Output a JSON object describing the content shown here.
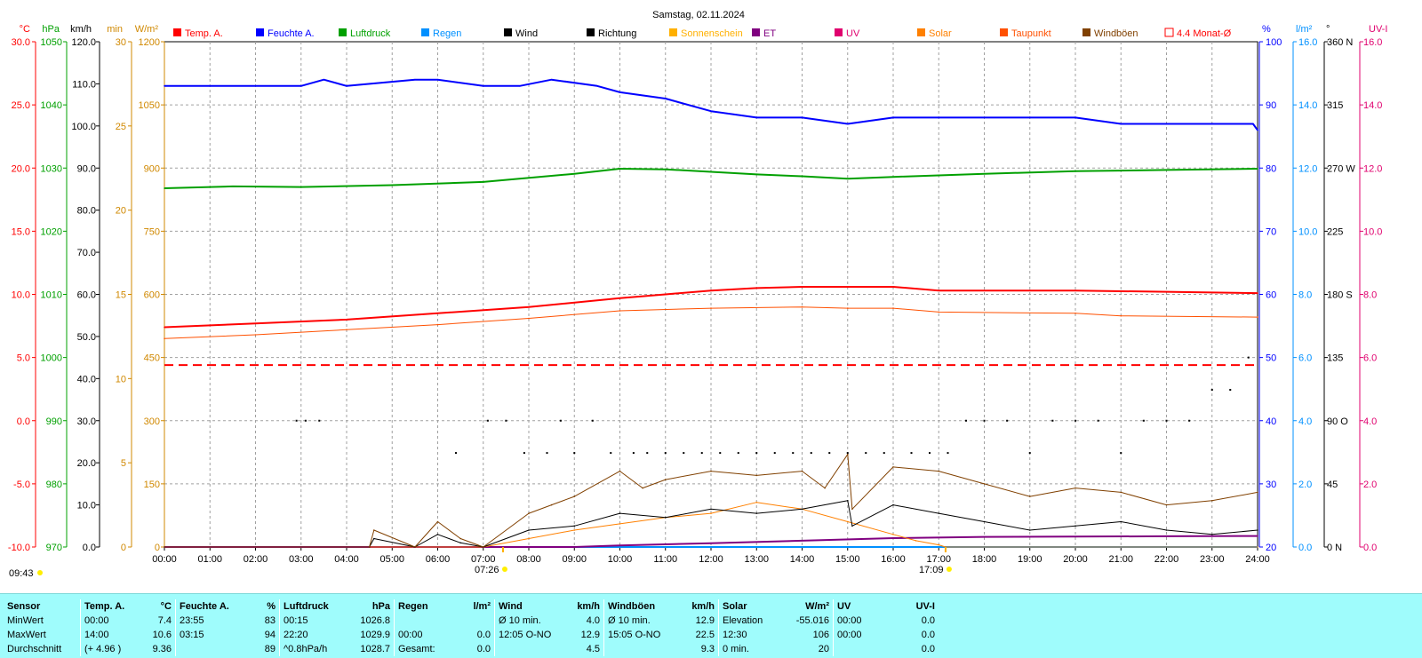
{
  "title": "Samstag, 02.11.2024",
  "colors": {
    "temp": "#ff0000",
    "humidity": "#0000ff",
    "pressure": "#00a000",
    "rain": "#0090ff",
    "wind": "#000000",
    "direction": "#000000",
    "sunshine": "#ffb000",
    "et": "#800080",
    "uv": "#e0006e",
    "solar": "#ff8000",
    "dewpoint": "#ff5000",
    "gusts": "#804000",
    "monthly": "#ff0000"
  },
  "legend": [
    {
      "label": "Temp. A.",
      "color": "#ff0000",
      "style": "box"
    },
    {
      "label": "Feuchte A.",
      "color": "#0000ff",
      "style": "box"
    },
    {
      "label": "Luftdruck",
      "color": "#00a000",
      "style": "box"
    },
    {
      "label": "Regen",
      "color": "#0090ff",
      "style": "box"
    },
    {
      "label": "Wind",
      "color": "#000000",
      "style": "box"
    },
    {
      "label": "Richtung",
      "color": "#000000",
      "style": "box"
    },
    {
      "label": "Sonnenschein",
      "color": "#ffb000",
      "style": "box"
    },
    {
      "label": "ET",
      "color": "#800080",
      "style": "box"
    },
    {
      "label": "UV",
      "color": "#e0006e",
      "style": "box"
    },
    {
      "label": "Solar",
      "color": "#ff8000",
      "style": "box"
    },
    {
      "label": "Taupunkt",
      "color": "#ff5000",
      "style": "box"
    },
    {
      "label": "Windböen",
      "color": "#804000",
      "style": "box"
    },
    {
      "label": "4.4 Monat-Ø",
      "color": "#ff0000",
      "style": "open"
    }
  ],
  "axes": {
    "temp": {
      "unit": "°C",
      "ticks": [
        "30.0",
        "25.0",
        "20.0",
        "15.0",
        "10.0",
        "5.0",
        "0.0",
        "-5.0",
        "-10.0"
      ]
    },
    "pressure": {
      "unit": "hPa",
      "ticks": [
        "1050",
        "1040",
        "1030",
        "1020",
        "1010",
        "1000",
        "990",
        "980",
        "970"
      ]
    },
    "wind": {
      "unit": "km/h",
      "ticks": [
        "120.0",
        "110.0",
        "100.0",
        "90.0",
        "80.0",
        "70.0",
        "60.0",
        "50.0",
        "40.0",
        "30.0",
        "20.0",
        "10.0",
        "0.0"
      ]
    },
    "sunshine": {
      "unit": "min",
      "ticks": [
        "30",
        "25",
        "20",
        "15",
        "10",
        "5",
        "0"
      ]
    },
    "solar": {
      "unit": "W/m²",
      "ticks": [
        "1200",
        "1050",
        "900",
        "750",
        "600",
        "450",
        "300",
        "150",
        "0"
      ]
    },
    "humidity": {
      "unit": "%",
      "ticks": [
        "100",
        "90",
        "80",
        "70",
        "60",
        "50",
        "40",
        "30",
        "20"
      ]
    },
    "rain": {
      "unit": "l/m²",
      "ticks": [
        "16.0",
        "14.0",
        "12.0",
        "10.0",
        "8.0",
        "6.0",
        "4.0",
        "2.0",
        "0.0"
      ]
    },
    "direction": {
      "unit": "°",
      "ticks": [
        "360 N",
        "315",
        "270 W",
        "225",
        "180 S",
        "135",
        "90 O",
        "45",
        "0 N"
      ]
    },
    "uv": {
      "unit": "UV-I",
      "ticks": [
        "16.0",
        "14.0",
        "12.0",
        "10.0",
        "8.0",
        "6.0",
        "4.0",
        "2.0",
        "0.0"
      ]
    },
    "time": {
      "ticks": [
        "00:00",
        "01:00",
        "02:00",
        "03:00",
        "04:00",
        "05:00",
        "06:00",
        "07:00",
        "08:00",
        "09:00",
        "10:00",
        "11:00",
        "12:00",
        "13:00",
        "14:00",
        "15:00",
        "16:00",
        "17:00",
        "18:00",
        "19:00",
        "20:00",
        "21:00",
        "22:00",
        "23:00",
        "24:00"
      ]
    }
  },
  "markers": {
    "now": "09:43",
    "sunrise": "07:26",
    "sunset": "17:09"
  },
  "chart_data": {
    "type": "line",
    "x_unit": "hour",
    "grid": true,
    "reference_line": {
      "name": "4.4 Monat-Ø",
      "axis": "temp",
      "value": 4.4
    },
    "series": [
      {
        "name": "Temp. A.",
        "axis": "temp",
        "x": [
          0,
          2,
          4,
          6,
          8,
          10,
          11,
          12,
          13,
          14,
          15,
          16,
          17,
          20,
          24
        ],
        "y": [
          7.4,
          7.7,
          8.0,
          8.5,
          9.0,
          9.7,
          10.0,
          10.3,
          10.5,
          10.6,
          10.6,
          10.6,
          10.3,
          10.3,
          10.1
        ]
      },
      {
        "name": "Taupunkt",
        "axis": "temp",
        "x": [
          0,
          2,
          4,
          6,
          8,
          10,
          12,
          14,
          15,
          16,
          17,
          20,
          21,
          24
        ],
        "y": [
          6.5,
          6.8,
          7.2,
          7.6,
          8.1,
          8.7,
          8.9,
          9.0,
          8.9,
          8.9,
          8.6,
          8.5,
          8.3,
          8.2
        ]
      },
      {
        "name": "Feuchte A.",
        "axis": "humidity",
        "x": [
          0,
          3,
          3.5,
          4,
          5.5,
          6,
          7,
          7.8,
          8.5,
          9.5,
          10,
          11,
          12,
          13,
          14,
          15,
          16,
          17,
          20,
          21,
          23.9,
          24
        ],
        "y": [
          93,
          93,
          94,
          93,
          94,
          94,
          93,
          93,
          94,
          93,
          92,
          91,
          89,
          88,
          88,
          87,
          88,
          88,
          88,
          87,
          87,
          86
        ]
      },
      {
        "name": "Luftdruck",
        "axis": "pressure",
        "x": [
          0,
          1.5,
          3,
          5,
          7,
          9,
          10,
          11,
          12,
          13,
          14,
          15,
          16,
          18,
          20,
          22,
          24
        ],
        "y": [
          1026.8,
          1027.1,
          1027.0,
          1027.3,
          1027.8,
          1029.1,
          1029.9,
          1029.8,
          1029.4,
          1029.0,
          1028.7,
          1028.3,
          1028.6,
          1029.1,
          1029.5,
          1029.7,
          1029.9
        ]
      },
      {
        "name": "Regen",
        "axis": "rain",
        "x": [
          0,
          24
        ],
        "y": [
          0.0,
          0.0
        ]
      },
      {
        "name": "ET",
        "axis": "rain",
        "x": [
          0,
          9,
          10,
          12,
          14,
          16,
          18,
          20,
          22,
          24
        ],
        "y": [
          0.0,
          0.0,
          0.05,
          0.12,
          0.2,
          0.28,
          0.32,
          0.33,
          0.34,
          0.35
        ]
      },
      {
        "name": "Solar",
        "axis": "solar",
        "x": [
          0,
          7,
          8,
          9,
          10,
          11,
          12,
          13,
          14,
          15,
          16,
          16.5,
          17,
          17.15,
          24
        ],
        "y": [
          0,
          0,
          20,
          40,
          55,
          70,
          80,
          106,
          90,
          60,
          30,
          15,
          5,
          0,
          0
        ]
      },
      {
        "name": "Wind",
        "axis": "wind",
        "x": [
          0,
          4.5,
          4.6,
          5.5,
          6,
          6.5,
          7,
          8,
          9,
          10,
          11,
          12,
          13,
          14,
          15,
          15.1,
          16,
          17,
          18,
          19,
          20,
          21,
          22,
          23,
          24
        ],
        "y": [
          0,
          0,
          2,
          0,
          3,
          1,
          0,
          4,
          5,
          8,
          7,
          9,
          8,
          9,
          11,
          5,
          10,
          8,
          6,
          4,
          5,
          6,
          4,
          3,
          4
        ]
      },
      {
        "name": "Windböen",
        "axis": "wind",
        "x": [
          0,
          4.5,
          4.6,
          5.5,
          6,
          6.5,
          7,
          8,
          8.5,
          9,
          10,
          10.5,
          11,
          12,
          13,
          14,
          14.5,
          15,
          15.1,
          16,
          17,
          18,
          19,
          20,
          21,
          22,
          23,
          24
        ],
        "y": [
          0,
          0,
          4,
          0,
          6,
          2,
          0,
          8,
          10,
          12,
          18,
          14,
          16,
          18,
          17,
          18,
          14,
          22,
          9,
          19,
          18,
          15,
          12,
          14,
          13,
          10,
          11,
          13
        ]
      }
    ],
    "direction_points": {
      "axis": "direction",
      "x": [
        2.9,
        3.1,
        3.4,
        6.4,
        7.1,
        7.5,
        7.9,
        8.4,
        8.7,
        9.0,
        9.4,
        9.8,
        10.3,
        10.6,
        11.0,
        11.4,
        11.8,
        12.2,
        12.6,
        13.0,
        13.4,
        13.8,
        14.2,
        14.6,
        15.0,
        15.4,
        15.8,
        16.4,
        16.8,
        17.2,
        17.6,
        18.0,
        18.5,
        19.0,
        19.5,
        20.0,
        20.5,
        21.0,
        21.5,
        22.0,
        22.5,
        23.0,
        23.4,
        23.8
      ],
      "y": [
        90,
        90,
        90,
        67,
        90,
        90,
        67,
        67,
        90,
        67,
        90,
        67,
        67,
        67,
        67,
        67,
        67,
        67,
        67,
        67,
        67,
        67,
        67,
        67,
        67,
        67,
        67,
        67,
        67,
        67,
        90,
        90,
        90,
        67,
        90,
        90,
        90,
        67,
        90,
        90,
        90,
        112,
        112,
        135
      ]
    }
  },
  "stats": {
    "headers": [
      "Sensor",
      "Temp. A.",
      "°C",
      "Feuchte A.",
      "%",
      "Luftdruck",
      "hPa",
      "Regen",
      "l/m²",
      "Wind",
      "km/h",
      "Windböen",
      "km/h",
      "Solar",
      "W/m²",
      "UV",
      "UV-I"
    ],
    "rows": [
      [
        "MinWert",
        "00:00",
        "7.4",
        "23:55",
        "83",
        "00:15",
        "1026.8",
        "",
        "",
        "Ø 10 min.",
        "4.0",
        "Ø 10 min.",
        "12.9",
        "Elevation",
        "-55.016",
        "00:00",
        "0.0"
      ],
      [
        "MaxWert",
        "14:00",
        "10.6",
        "03:15",
        "94",
        "22:20",
        "1029.9",
        "00:00",
        "0.0",
        "12:05 O-NO",
        "12.9",
        "15:05 O-NO",
        "22.5",
        "12:30",
        "106",
        "00:00",
        "0.0"
      ],
      [
        "Durchschnitt",
        "(+ 4.96 )",
        "9.36",
        "",
        "89",
        "^0.8hPa/h",
        "1028.7",
        "Gesamt:",
        "0.0",
        "",
        "4.5",
        "",
        "9.3",
        "0 min.",
        "20",
        "",
        "0.0"
      ]
    ]
  }
}
